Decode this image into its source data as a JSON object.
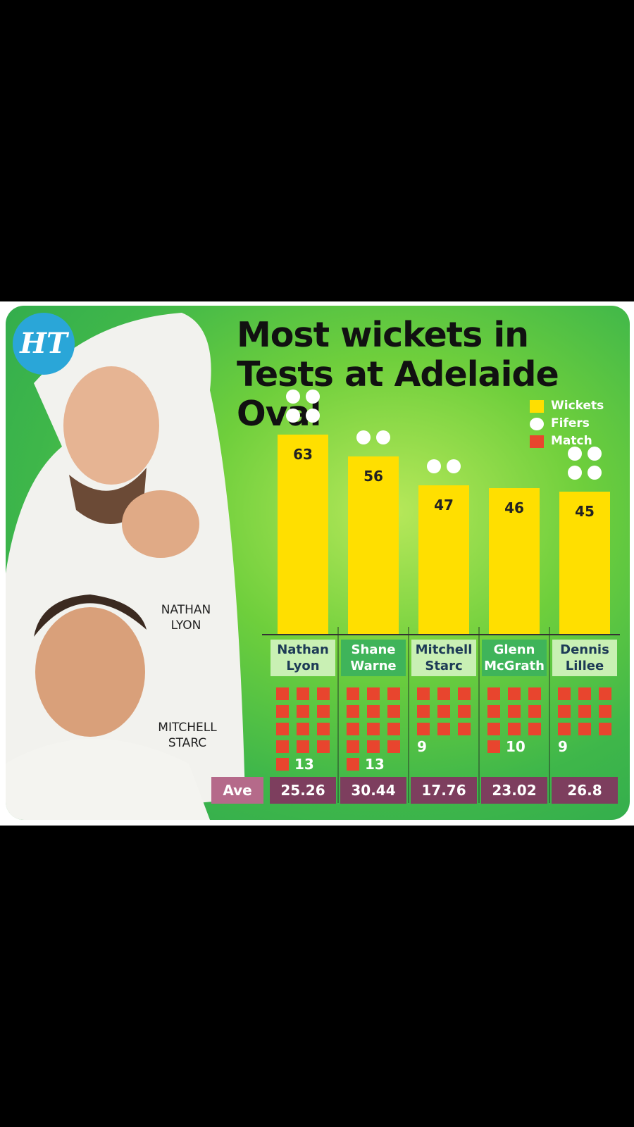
{
  "logo": "HT",
  "photo_labels": [
    "NATHAN LYON",
    "MITCHELL STARC"
  ],
  "chart_data": {
    "type": "bar",
    "title": "Most wickets in Tests at Adelaide Oval",
    "categories": [
      "Nathan Lyon",
      "Shane Warne",
      "Mitchell Starc",
      "Glenn McGrath",
      "Dennis Lillee"
    ],
    "series": [
      {
        "name": "Wickets",
        "color": "#ffdf00",
        "values": [
          63,
          56,
          47,
          46,
          45
        ]
      },
      {
        "name": "Fifers",
        "color": "#ffffff",
        "values": [
          4,
          2,
          2,
          0,
          4
        ]
      },
      {
        "name": "Match",
        "color": "#e8452e",
        "values": [
          13,
          13,
          9,
          10,
          9
        ]
      }
    ],
    "average_label": "Ave",
    "averages": [
      25.26,
      30.44,
      17.76,
      23.02,
      26.8
    ]
  }
}
